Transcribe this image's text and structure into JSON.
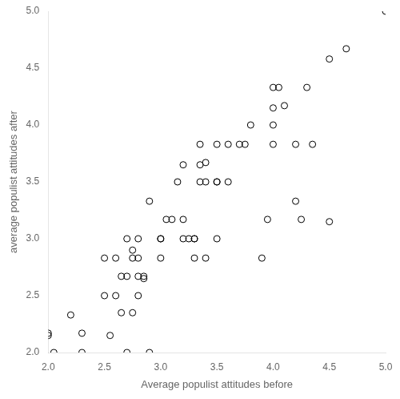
{
  "chart_data": {
    "type": "scatter",
    "x": [
      2.0,
      2.0,
      2.2,
      2.3,
      2.3,
      2.5,
      2.5,
      2.6,
      2.6,
      2.65,
      2.65,
      2.7,
      2.7,
      2.7,
      2.75,
      2.75,
      2.8,
      2.8,
      2.8,
      2.8,
      2.85,
      2.85,
      2.9,
      2.9,
      3.0,
      3.0,
      3.0,
      3.1,
      3.2,
      3.2,
      3.2,
      3.3,
      3.3,
      3.3,
      3.35,
      3.35,
      3.35,
      3.4,
      3.4,
      3.5,
      3.5,
      3.5,
      3.5,
      3.6,
      3.6,
      3.7,
      3.8,
      3.9,
      3.95,
      4.0,
      4.0,
      4.0,
      4.05,
      4.1,
      4.2,
      4.2,
      4.3,
      4.35,
      4.5,
      4.65,
      5.0,
      2.05,
      2.55,
      2.75,
      3.05,
      3.15,
      3.25,
      3.4,
      3.75,
      4.0,
      4.25,
      4.5
    ],
    "values": [
      2.15,
      2.17,
      2.33,
      2.0,
      2.17,
      2.5,
      2.83,
      2.5,
      2.83,
      2.35,
      2.67,
      2.0,
      2.67,
      3.0,
      2.83,
      2.9,
      2.5,
      2.67,
      2.83,
      3.0,
      2.65,
      2.67,
      2.0,
      3.33,
      2.83,
      3.0,
      3.0,
      3.17,
      3.0,
      3.17,
      3.65,
      2.83,
      3.0,
      3.0,
      3.5,
      3.65,
      3.83,
      2.83,
      3.5,
      3.0,
      3.5,
      3.5,
      3.83,
      3.5,
      3.83,
      3.83,
      4.0,
      2.83,
      3.17,
      3.83,
      4.0,
      4.33,
      4.33,
      4.17,
      3.83,
      3.33,
      4.33,
      3.83,
      4.58,
      4.67,
      5.0,
      2.0,
      2.15,
      2.35,
      3.17,
      3.5,
      3.0,
      3.67,
      3.83,
      4.15,
      3.17,
      3.15
    ],
    "x_label": "Average populist attitudes before",
    "y_label": "average populist attitudes after",
    "xlim": [
      2.0,
      5.0
    ],
    "ylim": [
      2.0,
      5.0
    ],
    "xticks": [
      {
        "value": 2.0,
        "label": "2.0"
      },
      2.5,
      {
        "value": 3.0,
        "label": "3.0"
      },
      3.5,
      {
        "value": 4.0,
        "label": "4.0"
      },
      4.5,
      {
        "value": 5.0,
        "label": "5.0"
      }
    ],
    "yticks": [
      {
        "value": 2.0,
        "label": "2.0"
      },
      2.5,
      {
        "value": 3.0,
        "label": "3.0"
      },
      3.5,
      {
        "value": 4.0,
        "label": "4.0"
      },
      4.5,
      {
        "value": 5.0,
        "label": "5.0"
      }
    ],
    "color": "#000000",
    "marker": "open_circle",
    "grid": false
  }
}
